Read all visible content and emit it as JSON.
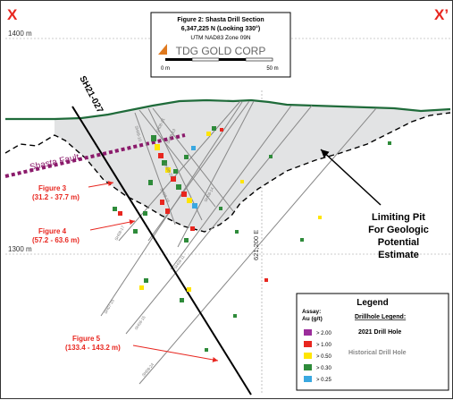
{
  "section": {
    "left_marker": "X",
    "right_marker": "X’",
    "elev_top": "1400 m",
    "elev_bottom": "1300 m",
    "easting": "621,200 E",
    "fault_label": "Shasta Fault",
    "main_hole": "SH21-027"
  },
  "title_box": {
    "line1": "Figure 2: Shasta Drill Section",
    "line2": "6,347,225 N (Looking 330°)",
    "line3": "UTM NAD83 Zone 09N",
    "logo": "TDG GOLD CORP",
    "scale_start": "0 m",
    "scale_end": "50 m"
  },
  "callouts": [
    {
      "title": "Figure 3",
      "range": "(31.2 - 37.7 m)"
    },
    {
      "title": "Figure 4",
      "range": "(57.2 - 63.6 m)"
    },
    {
      "title": "Figure 5",
      "range": "(133.4 - 143.2 m)"
    }
  ],
  "pit_label": [
    "Limiting Pit",
    "For Geologic",
    "Potential",
    "Estimate"
  ],
  "hole_labels": [
    "SH09-10",
    "SH08-21",
    "SH08-13",
    "SH08-20",
    "SH08-16",
    "SH08-14",
    "SH08-17",
    "SH07-15",
    "SH08-15",
    "SH08-11",
    "SH08-24"
  ],
  "legend": {
    "title": "Legend",
    "assay_title": "Assay:",
    "assay_unit": "Au (g/t)",
    "items": [
      {
        "label": "> 2.00",
        "color": "#9b2d9b"
      },
      {
        "label": "> 1.00",
        "color": "#e8261f"
      },
      {
        "label": "> 0.50",
        "color": "#ffe500"
      },
      {
        "label": "> 0.30",
        "color": "#2e8b3a"
      },
      {
        "label": "> 0.25",
        "color": "#3aa8e0"
      }
    ],
    "drillhole_title": "Drillhole Legend:",
    "hole_2021": "2021 Drill Hole",
    "hole_hist": "Historical Drill Hole"
  },
  "colors": {
    "callout": "#e8261f",
    "fault": "#8b1a6b",
    "topo": "#1f6b3a",
    "pit_fill": "#e2e3e4"
  }
}
